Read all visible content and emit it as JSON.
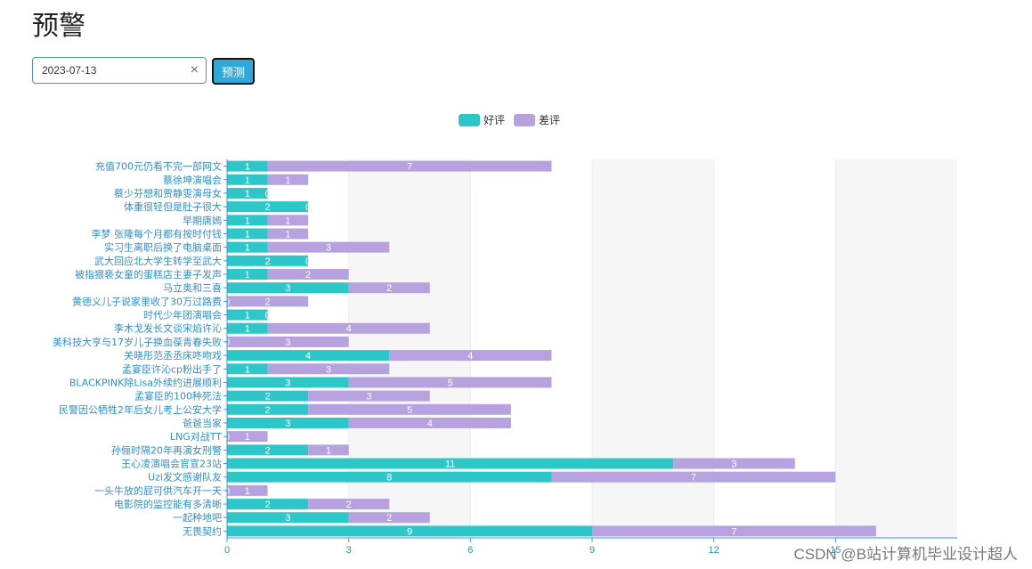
{
  "page": {
    "title": "预警"
  },
  "controls": {
    "date_value": "2023-07-13",
    "clear_symbol": "×",
    "predict_label": "预测"
  },
  "colors": {
    "good": "#2ec7c9",
    "bad": "#b6a2de",
    "axis": "#3398DB",
    "label": "#2f8fc8"
  },
  "watermark": "CSDN @B站计算机毕业设计超人",
  "chart_data": {
    "type": "bar",
    "orientation": "horizontal",
    "stacked": true,
    "legend": [
      "好评",
      "差评"
    ],
    "xlim": [
      0,
      18
    ],
    "xticks": [
      0,
      3,
      6,
      9,
      12,
      15
    ],
    "categories": [
      "充值700元仍看不完一部网文",
      "蔡徐坤演唱会",
      "蔡少芬想和贾静雯演母女",
      "体重很轻但是肚子很大",
      "早期唐嫣",
      "李梦 张隆每个月都有按时付钱",
      "实习生离职后换了电脑桌面",
      "武大回应北大学生转学至武大",
      "被指猥亵女童的蛋糕店主妻子发声",
      "马立奥和三喜",
      "黄德义儿子说家里收了30万过路费",
      "时代少年团演唱会",
      "李木戈发长文谈宋焰许沁",
      "美科技大亨与17岁儿子换血葆青春失败",
      "关晓彤范丞丞床咚吻戏",
      "孟宴臣许沁cp粉出手了",
      "BLACKPINK除Lisa外续约进展顺利",
      "孟宴臣的100种死法",
      "民警因公牺牲2年后女儿考上公安大学",
      "爸爸当家",
      "LNG对战TT",
      "孙俪时隔20年再演女刑警",
      "王心凌演唱会官宣23站",
      "Uzi发文感谢队友",
      "一头牛放的屁可供汽车开一天",
      "电影院的监控能有多清晰",
      "一起种地吧",
      "无畏契约"
    ],
    "series": [
      {
        "name": "好评",
        "values": [
          1,
          1,
          1,
          2,
          1,
          1,
          1,
          2,
          1,
          3,
          0,
          1,
          1,
          0,
          4,
          1,
          3,
          2,
          2,
          3,
          0,
          2,
          11,
          8,
          0,
          2,
          3,
          9
        ]
      },
      {
        "name": "差评",
        "values": [
          7,
          1,
          0,
          0,
          1,
          1,
          3,
          0,
          2,
          2,
          2,
          0,
          4,
          3,
          4,
          3,
          5,
          3,
          5,
          4,
          1,
          1,
          3,
          7,
          1,
          2,
          2,
          7
        ]
      }
    ]
  }
}
